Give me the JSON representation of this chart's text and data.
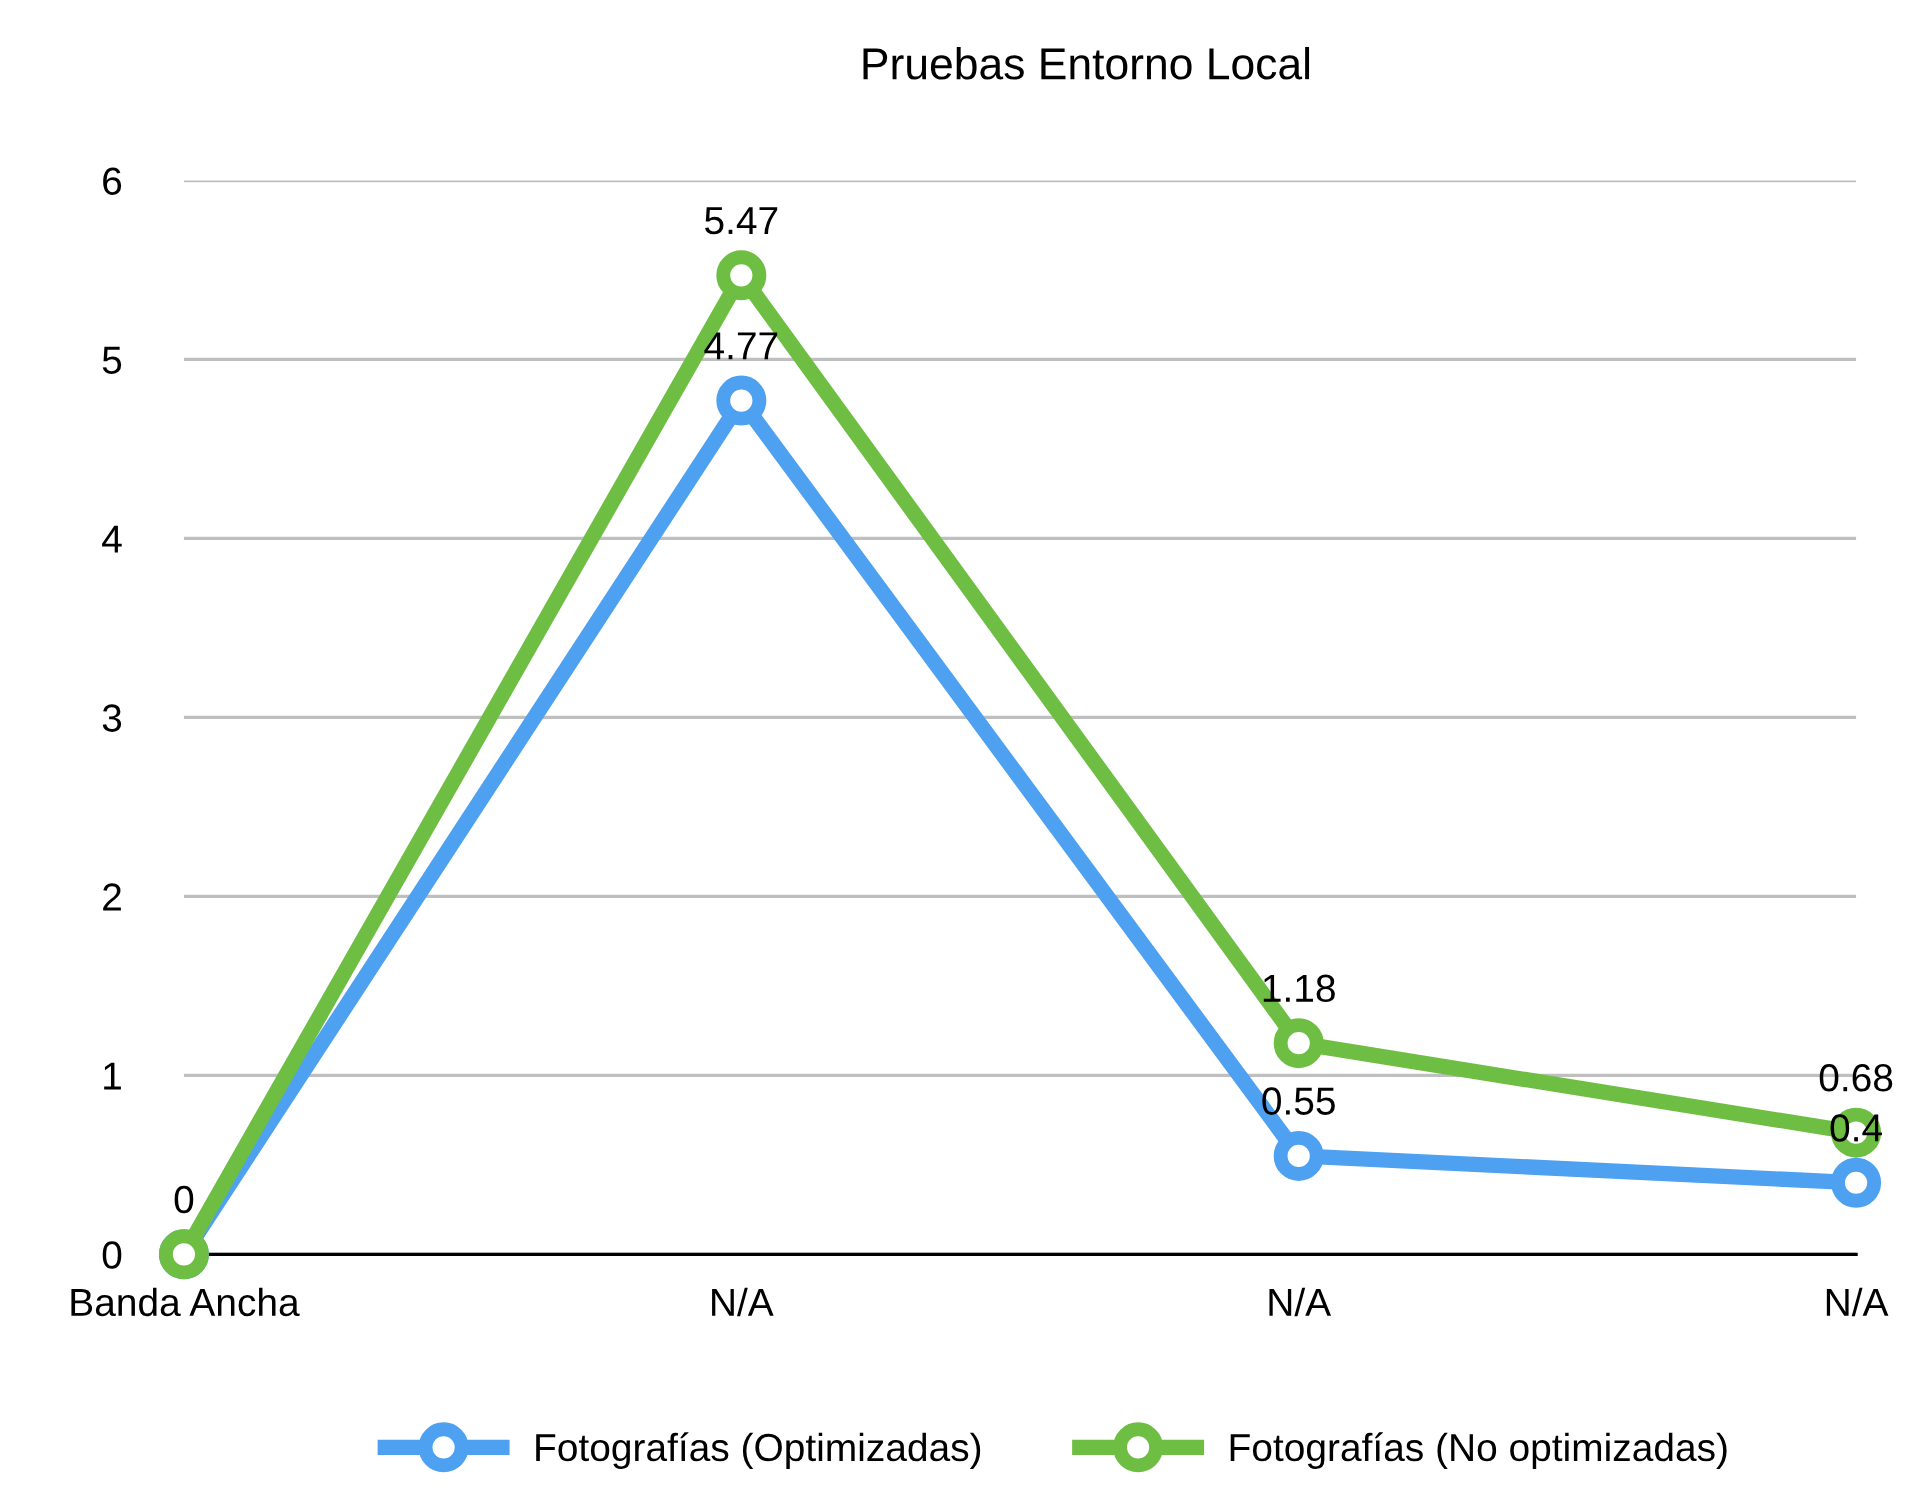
{
  "chart_data": {
    "type": "line",
    "title": "Pruebas Entorno Local",
    "categories": [
      "Banda Ancha",
      "N/A",
      "N/A",
      "N/A"
    ],
    "series": [
      {
        "name": "Fotografías (Optimizadas)",
        "color": "#4ea1f0",
        "values": [
          0,
          4.77,
          0.55,
          0.4
        ],
        "value_labels": [
          "0",
          "4.77",
          "0.55",
          "0.4"
        ]
      },
      {
        "name": "Fotografías (No optimizadas)",
        "color": "#6fbe44",
        "values": [
          0,
          5.47,
          1.18,
          0.68
        ],
        "value_labels": [
          null,
          "5.47",
          "1.18",
          "0.68"
        ]
      }
    ],
    "ylim": [
      0,
      6
    ],
    "yticks": [
      0,
      1,
      2,
      3,
      4,
      5,
      6
    ],
    "grid": "y",
    "legend": "bottom",
    "marker": "circle",
    "line_style": "solid"
  }
}
